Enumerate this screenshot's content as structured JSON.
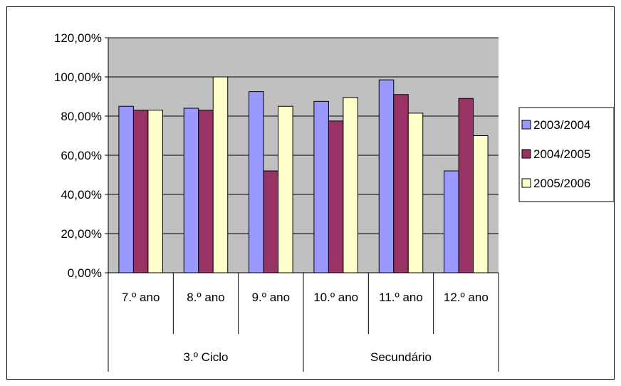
{
  "chart_data": {
    "type": "bar",
    "categories": [
      "7.º ano",
      "8.º ano",
      "9.º ano",
      "10.º ano",
      "11.º ano",
      "12.º ano"
    ],
    "groups": [
      {
        "label": "3.º Ciclo",
        "categories": [
          "7.º ano",
          "8.º ano",
          "9.º ano"
        ]
      },
      {
        "label": "Secundário",
        "categories": [
          "10.º ano",
          "11.º ano",
          "12.º ano"
        ]
      }
    ],
    "series": [
      {
        "name": "2003/2004",
        "color": "#9999ff",
        "values": [
          85,
          84,
          92.5,
          87.5,
          98.5,
          52
        ]
      },
      {
        "name": "2004/2005",
        "color": "#993366",
        "values": [
          83,
          83,
          52,
          77.5,
          91,
          89
        ]
      },
      {
        "name": "2005/2006",
        "color": "#ffffcc",
        "values": [
          83,
          100,
          85,
          89.5,
          81.5,
          70
        ]
      }
    ],
    "ylim": [
      0,
      120
    ],
    "yticks": [
      "0,00%",
      "20,00%",
      "40,00%",
      "60,00%",
      "80,00%",
      "100,00%",
      "120,00%"
    ],
    "plot_background": "#c0c0c0",
    "grid": true,
    "legend_position": "right"
  }
}
